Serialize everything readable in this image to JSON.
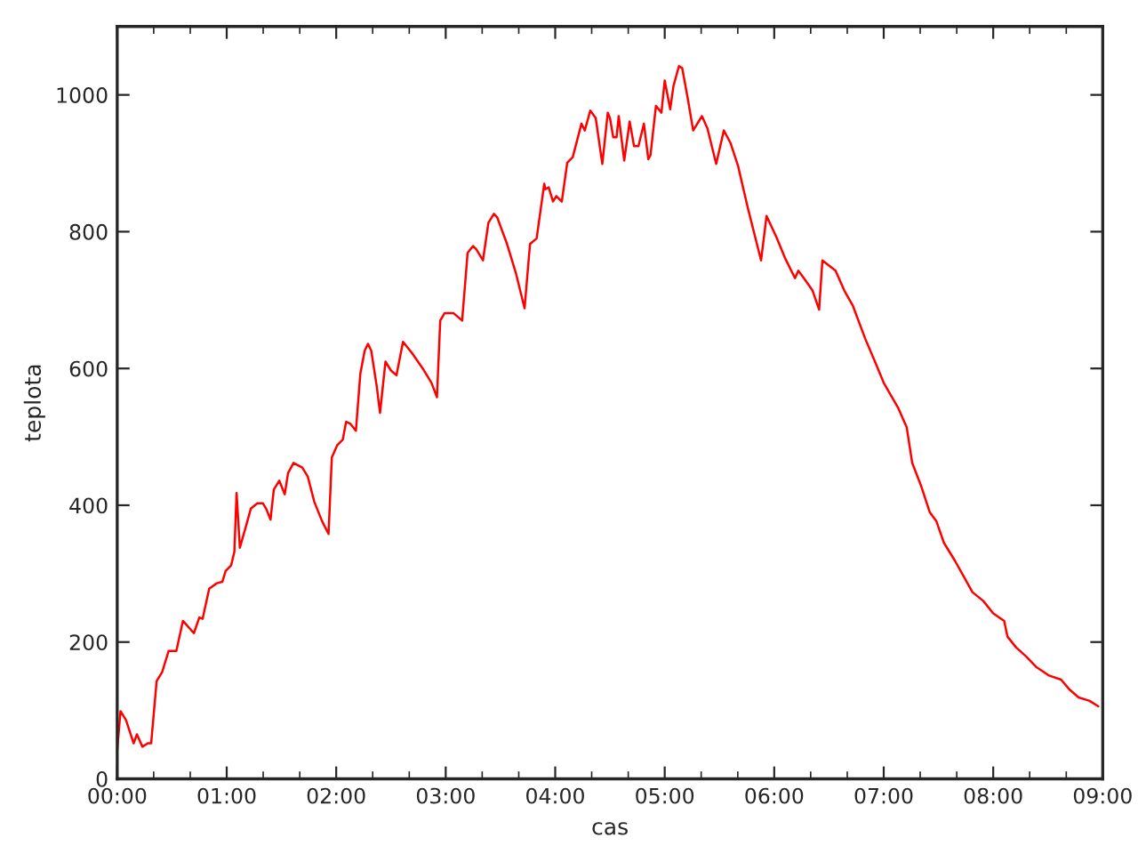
{
  "chart_data": {
    "type": "line",
    "xlabel": "cas",
    "ylabel": "teplota",
    "xlim": [
      0,
      9
    ],
    "ylim": [
      0,
      1100
    ],
    "xticks": [
      {
        "value": 0,
        "label": "00:00"
      },
      {
        "value": 0.333,
        "label": null
      },
      {
        "value": 0.667,
        "label": null
      },
      {
        "value": 1,
        "label": "01:00"
      },
      {
        "value": 1.333,
        "label": null
      },
      {
        "value": 1.667,
        "label": null
      },
      {
        "value": 2,
        "label": "02:00"
      },
      {
        "value": 2.333,
        "label": null
      },
      {
        "value": 2.667,
        "label": null
      },
      {
        "value": 3,
        "label": "03:00"
      },
      {
        "value": 3.333,
        "label": null
      },
      {
        "value": 3.667,
        "label": null
      },
      {
        "value": 4,
        "label": "04:00"
      },
      {
        "value": 4.333,
        "label": null
      },
      {
        "value": 4.667,
        "label": null
      },
      {
        "value": 5,
        "label": "05:00"
      },
      {
        "value": 5.333,
        "label": null
      },
      {
        "value": 5.667,
        "label": null
      },
      {
        "value": 6,
        "label": "06:00"
      },
      {
        "value": 6.333,
        "label": null
      },
      {
        "value": 6.667,
        "label": null
      },
      {
        "value": 7,
        "label": "07:00"
      },
      {
        "value": 7.333,
        "label": null
      },
      {
        "value": 7.667,
        "label": null
      },
      {
        "value": 8,
        "label": "08:00"
      },
      {
        "value": 8.333,
        "label": null
      },
      {
        "value": 8.667,
        "label": null
      },
      {
        "value": 9,
        "label": "09:00"
      }
    ],
    "yticks": [
      0,
      200,
      400,
      600,
      800,
      1000
    ],
    "grid": false,
    "marker": "none",
    "line_style": "solid",
    "series": [
      {
        "color": "#ff0000",
        "x": [
          0.0,
          0.03,
          0.08,
          0.15,
          0.18,
          0.23,
          0.28,
          0.31,
          0.36,
          0.41,
          0.47,
          0.54,
          0.6,
          0.7,
          0.75,
          0.78,
          0.84,
          0.91,
          0.96,
          0.99,
          1.04,
          1.07,
          1.09,
          1.12,
          1.17,
          1.22,
          1.28,
          1.33,
          1.36,
          1.4,
          1.43,
          1.48,
          1.53,
          1.56,
          1.61,
          1.69,
          1.74,
          1.8,
          1.87,
          1.93,
          1.96,
          2.01,
          2.06,
          2.09,
          2.13,
          2.18,
          2.22,
          2.26,
          2.29,
          2.32,
          2.37,
          2.4,
          2.45,
          2.5,
          2.55,
          2.61,
          2.69,
          2.79,
          2.87,
          2.92,
          2.95,
          2.99,
          3.07,
          3.15,
          3.2,
          3.25,
          3.28,
          3.34,
          3.39,
          3.44,
          3.47,
          3.56,
          3.64,
          3.72,
          3.77,
          3.83,
          3.9,
          3.91,
          3.94,
          3.98,
          4.01,
          4.06,
          4.11,
          4.16,
          4.24,
          4.27,
          4.32,
          4.37,
          4.43,
          4.48,
          4.5,
          4.53,
          4.56,
          4.58,
          4.63,
          4.68,
          4.72,
          4.76,
          4.81,
          4.85,
          4.87,
          4.92,
          4.97,
          5.0,
          5.05,
          5.08,
          5.13,
          5.16,
          5.21,
          5.26,
          5.34,
          5.39,
          5.47,
          5.54,
          5.6,
          5.67,
          5.76,
          5.88,
          5.93,
          6.02,
          6.1,
          6.19,
          6.22,
          6.28,
          6.35,
          6.41,
          6.44,
          6.56,
          6.64,
          6.72,
          6.83,
          6.92,
          7.0,
          7.13,
          7.21,
          7.26,
          7.34,
          7.42,
          7.48,
          7.55,
          7.65,
          7.73,
          7.81,
          7.91,
          8.0,
          8.1,
          8.13,
          8.21,
          8.3,
          8.39,
          8.51,
          8.62,
          8.7,
          8.78,
          8.88,
          8.96
        ],
        "values": [
          42,
          99,
          86,
          52,
          65,
          47,
          52,
          52,
          143,
          156,
          187,
          187,
          231,
          213,
          236,
          234,
          278,
          286,
          288,
          304,
          312,
          332,
          418,
          338,
          366,
          395,
          403,
          403,
          395,
          379,
          423,
          436,
          416,
          447,
          462,
          455,
          442,
          405,
          377,
          358,
          470,
          488,
          496,
          522,
          519,
          509,
          592,
          626,
          636,
          626,
          574,
          535,
          610,
          597,
          590,
          639,
          623,
          600,
          579,
          558,
          670,
          681,
          681,
          670,
          769,
          779,
          774,
          758,
          813,
          826,
          821,
          782,
          740,
          688,
          782,
          790,
          870,
          862,
          865,
          844,
          852,
          844,
          901,
          909,
          958,
          948,
          977,
          966,
          899,
          974,
          966,
          938,
          938,
          969,
          904,
          961,
          925,
          925,
          958,
          906,
          912,
          984,
          974,
          1021,
          979,
          1013,
          1042,
          1039,
          995,
          948,
          969,
          951,
          899,
          948,
          930,
          896,
          834,
          758,
          823,
          792,
          761,
          732,
          743,
          730,
          714,
          686,
          758,
          743,
          714,
          691,
          644,
          610,
          579,
          543,
          514,
          462,
          429,
          390,
          377,
          345,
          319,
          296,
          273,
          260,
          242,
          231,
          208,
          192,
          179,
          164,
          151,
          145,
          130,
          119,
          114,
          106
        ]
      }
    ]
  }
}
